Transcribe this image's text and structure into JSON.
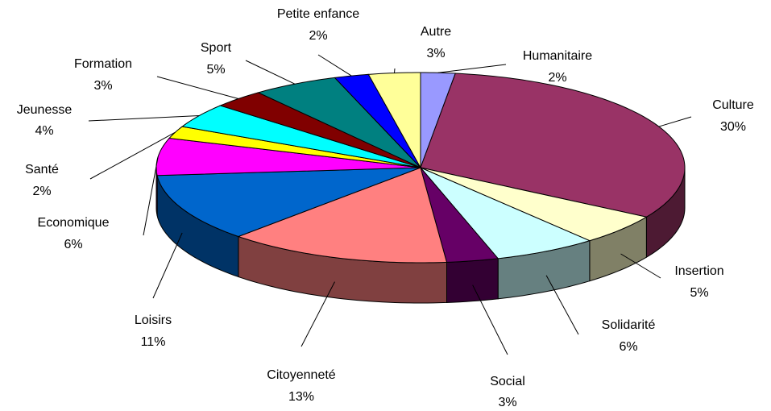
{
  "chart_data": {
    "type": "pie3d",
    "categories": [
      "Humanitaire",
      "Culture",
      "Insertion",
      "Solidarité",
      "Social",
      "Citoyenneté",
      "Loisirs",
      "Economique",
      "Santé",
      "Jeunesse",
      "Formation",
      "Sport",
      "Petite enfance",
      "Autre"
    ],
    "values": [
      2,
      30,
      5,
      6,
      3,
      13,
      11,
      6,
      2,
      4,
      3,
      5,
      2,
      3
    ],
    "value_labels": [
      "2%",
      "30%",
      "5%",
      "6%",
      "3%",
      "13%",
      "11%",
      "6%",
      "2%",
      "4%",
      "3%",
      "5%",
      "2%",
      "3%"
    ],
    "colors": [
      "#9999ff",
      "#993366",
      "#ffffcc",
      "#ccffff",
      "#660066",
      "#ff8080",
      "#0066cc",
      "#ff00ff",
      "#ffff00",
      "#00ffff",
      "#800000",
      "#008080",
      "#0000ff",
      "#ffff99"
    ]
  }
}
